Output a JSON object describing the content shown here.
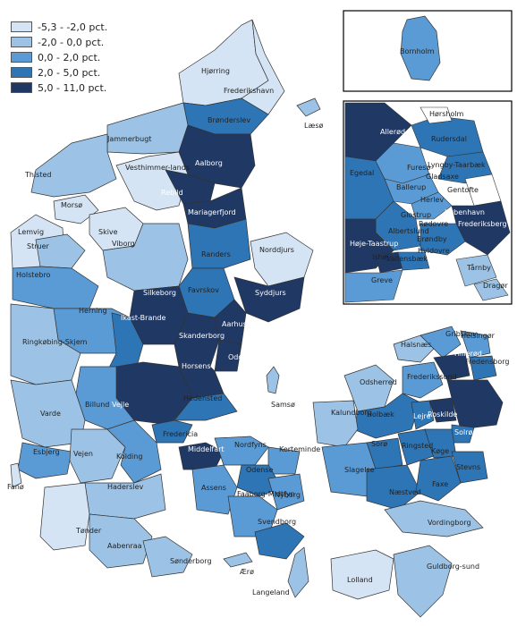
{
  "legend": {
    "items": [
      {
        "label": "-5,3 - -2,0 pct.",
        "color": "#d5e4f4"
      },
      {
        "label": "-2,0 - 0,0 pct.",
        "color": "#9cc3e6"
      },
      {
        "label": "0,0 - 2,0 pct.",
        "color": "#5b9bd5"
      },
      {
        "label": "2,0 - 5,0 pct.",
        "color": "#2e75b6"
      },
      {
        "label": "5,0 - 11,0 pct.",
        "color": "#1f3864"
      }
    ]
  },
  "inset_bornholm": {
    "label": "Bornholm"
  },
  "inset_copenhagen": {
    "labels": [
      "Hørsholm",
      "Allerød",
      "Rudersdal",
      "Egedal",
      "Furesø",
      "Lyngby-Taarbæk",
      "Gladsaxe",
      "Ballerup",
      "Gentofte",
      "Herlev",
      "Glostrup",
      "København",
      "Albertslund",
      "Rødovre",
      "Frederiksberg",
      "Høje-Taastrup",
      "Brøndby",
      "Hvidovre",
      "Ishøj",
      "Vallensbæk",
      "Tårnby",
      "Greve",
      "Dragør"
    ]
  },
  "municipalities": {
    "labels": [
      "Hjørring",
      "Frederikshavn",
      "Læsø",
      "Brønderslev",
      "Jammerbugt",
      "Aalborg",
      "Thisted",
      "Rebild",
      "Vesthimmer-lands",
      "Mariagerfjord",
      "Morsø",
      "Skive",
      "Lemvig",
      "Struer",
      "Viborg",
      "Randers",
      "Norddjurs",
      "Holstebro",
      "Favrskov",
      "Syddjurs",
      "Silkeborg",
      "Herning",
      "Ikast-Brande",
      "Aarhus",
      "Skanderborg",
      "Ringkøbing-Skjem",
      "Odder",
      "Horsens",
      "Samsø",
      "Vejle",
      "Hedensted",
      "Billund",
      "Varde",
      "Fredericia",
      "Esbjerg",
      "Vejen",
      "Kolding",
      "Fanø",
      "Middelfart",
      "Nordfyns",
      "Kerteminde",
      "Odense",
      "Assens",
      "Haderslev",
      "Faaborg-Midtfyn",
      "Nyborg",
      "Svendborg",
      "Tønder",
      "Aabenraa",
      "Sønderborg",
      "Ærø",
      "Langeland",
      "Halsnæs",
      "Gribskov",
      "Helsingør",
      "Hillerød",
      "Fredensborg",
      "Odsherred",
      "Frederikssund",
      "Holbæk",
      "Lejre",
      "Roskilde",
      "Solrød",
      "Kalundborg",
      "Sorø",
      "Ringsted",
      "Køge",
      "Slagelse",
      "Stevns",
      "Næstved",
      "Faxe",
      "Vordingborg",
      "Lolland",
      "Guldborg-sund"
    ]
  }
}
